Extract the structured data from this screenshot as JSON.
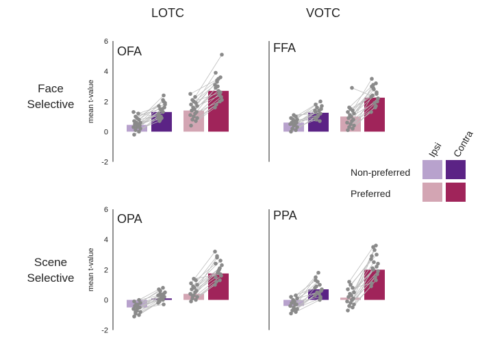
{
  "columns": [
    "LOTC",
    "VOTC"
  ],
  "rows": [
    {
      "lines": [
        "Face",
        "Selective"
      ]
    },
    {
      "lines": [
        "Scene",
        "Selective"
      ]
    }
  ],
  "legend": {
    "columns": [
      "Ipsi",
      "Contra"
    ],
    "rows": [
      "Non-preferred",
      "Preferred"
    ]
  },
  "colors": {
    "ipsi_nonpreferred": "#b8a2cd",
    "contra_nonpreferred": "#5b2385",
    "ipsi_preferred": "#d3a5b3",
    "contra_preferred": "#a0245a",
    "dots": "#8a8a8a",
    "lines": "#bdbdbd"
  },
  "chart_data": [
    {
      "type": "bar",
      "title": "OFA",
      "ylabel": "mean t-value",
      "ylim": [
        -2,
        6
      ],
      "yticks": [
        "6",
        "4",
        "2",
        "0",
        "-2"
      ],
      "categories": [
        "Ipsi Non-preferred",
        "Contra Non-preferred",
        "Ipsi Preferred",
        "Contra Preferred"
      ],
      "values": [
        0.45,
        1.3,
        1.4,
        2.7
      ],
      "subjects_nonpreferred": [
        [
          -0.2,
          0.9
        ],
        [
          0.0,
          1.3
        ],
        [
          0.1,
          1.6
        ],
        [
          0.2,
          0.7
        ],
        [
          0.3,
          1.5
        ],
        [
          0.3,
          1.0
        ],
        [
          0.4,
          1.9
        ],
        [
          0.4,
          1.2
        ],
        [
          0.5,
          2.4
        ],
        [
          0.5,
          1.4
        ],
        [
          0.6,
          0.8
        ],
        [
          0.6,
          2.1
        ],
        [
          0.7,
          1.1
        ],
        [
          0.8,
          1.7
        ],
        [
          0.9,
          2.0
        ],
        [
          1.0,
          1.5
        ],
        [
          1.2,
          1.8
        ],
        [
          1.3,
          0.9
        ]
      ],
      "subjects_preferred": [
        [
          0.4,
          1.6
        ],
        [
          0.7,
          2.0
        ],
        [
          0.8,
          2.3
        ],
        [
          0.9,
          1.8
        ],
        [
          1.0,
          2.5
        ],
        [
          1.1,
          3.0
        ],
        [
          1.2,
          2.1
        ],
        [
          1.3,
          2.9
        ],
        [
          1.4,
          3.6
        ],
        [
          1.5,
          2.7
        ],
        [
          1.6,
          3.3
        ],
        [
          1.7,
          2.4
        ],
        [
          1.8,
          3.1
        ],
        [
          1.9,
          3.9
        ],
        [
          2.0,
          2.6
        ],
        [
          2.1,
          3.4
        ],
        [
          2.3,
          5.1
        ],
        [
          2.5,
          3.5
        ]
      ]
    },
    {
      "type": "bar",
      "title": "FFA",
      "ylabel": "",
      "ylim": [
        -2,
        6
      ],
      "categories": [
        "Ipsi Non-preferred",
        "Contra Non-preferred",
        "Ipsi Preferred",
        "Contra Preferred"
      ],
      "values": [
        0.6,
        1.25,
        1.0,
        2.25
      ],
      "subjects_nonpreferred": [
        [
          0.0,
          0.9
        ],
        [
          0.1,
          1.2
        ],
        [
          0.2,
          1.5
        ],
        [
          0.3,
          0.8
        ],
        [
          0.4,
          1.4
        ],
        [
          0.5,
          1.0
        ],
        [
          0.5,
          1.7
        ],
        [
          0.6,
          1.3
        ],
        [
          0.6,
          2.0
        ],
        [
          0.7,
          1.1
        ],
        [
          0.8,
          1.6
        ],
        [
          0.8,
          0.7
        ],
        [
          0.9,
          1.4
        ],
        [
          1.0,
          1.8
        ],
        [
          1.1,
          1.2
        ]
      ],
      "subjects_preferred": [
        [
          0.1,
          1.3
        ],
        [
          0.2,
          1.7
        ],
        [
          0.3,
          2.0
        ],
        [
          0.4,
          2.4
        ],
        [
          0.5,
          1.6
        ],
        [
          0.6,
          2.8
        ],
        [
          0.7,
          2.2
        ],
        [
          0.8,
          3.0
        ],
        [
          0.9,
          2.5
        ],
        [
          1.0,
          1.9
        ],
        [
          1.1,
          2.9
        ],
        [
          1.2,
          3.2
        ],
        [
          1.3,
          2.3
        ],
        [
          1.4,
          3.5
        ],
        [
          1.5,
          2.6
        ],
        [
          1.6,
          3.1
        ],
        [
          2.9,
          2.2
        ]
      ]
    },
    {
      "type": "bar",
      "title": "OPA",
      "ylabel": "mean t-value",
      "ylim": [
        -2,
        6
      ],
      "yticks": [
        "6",
        "4",
        "2",
        "0",
        "-2"
      ],
      "categories": [
        "Ipsi Non-preferred",
        "Contra Non-preferred",
        "Ipsi Preferred",
        "Contra Preferred"
      ],
      "values": [
        -0.5,
        0.1,
        0.4,
        1.75
      ],
      "subjects_nonpreferred": [
        [
          -1.1,
          -0.2
        ],
        [
          -1.0,
          0.0
        ],
        [
          -0.9,
          0.2
        ],
        [
          -0.8,
          -0.1
        ],
        [
          -0.7,
          0.3
        ],
        [
          -0.6,
          0.1
        ],
        [
          -0.5,
          0.5
        ],
        [
          -0.5,
          0.0
        ],
        [
          -0.4,
          0.4
        ],
        [
          -0.3,
          0.2
        ],
        [
          -0.3,
          0.6
        ],
        [
          -0.2,
          0.8
        ],
        [
          -0.1,
          0.3
        ],
        [
          0.0,
          0.7
        ],
        [
          -0.6,
          -0.3
        ],
        [
          -0.8,
          0.4
        ]
      ],
      "subjects_preferred": [
        [
          -0.1,
          1.0
        ],
        [
          0.0,
          1.3
        ],
        [
          0.1,
          1.6
        ],
        [
          0.2,
          1.2
        ],
        [
          0.3,
          2.0
        ],
        [
          0.4,
          1.8
        ],
        [
          0.5,
          2.3
        ],
        [
          0.6,
          1.5
        ],
        [
          0.7,
          2.6
        ],
        [
          0.8,
          1.9
        ],
        [
          0.9,
          2.9
        ],
        [
          1.0,
          2.1
        ],
        [
          1.1,
          3.2
        ],
        [
          1.3,
          2.4
        ],
        [
          1.4,
          1.7
        ],
        [
          0.3,
          2.8
        ]
      ]
    },
    {
      "type": "bar",
      "title": "PPA",
      "ylabel": "",
      "ylim": [
        -2,
        6
      ],
      "categories": [
        "Ipsi Non-preferred",
        "Contra Non-preferred",
        "Ipsi Preferred",
        "Contra Preferred"
      ],
      "values": [
        -0.4,
        0.7,
        0.15,
        2.0
      ],
      "subjects_nonpreferred": [
        [
          -0.9,
          0.3
        ],
        [
          -0.8,
          0.0
        ],
        [
          -0.7,
          0.6
        ],
        [
          -0.6,
          0.9
        ],
        [
          -0.5,
          0.4
        ],
        [
          -0.4,
          1.2
        ],
        [
          -0.3,
          0.7
        ],
        [
          -0.3,
          1.5
        ],
        [
          -0.2,
          0.2
        ],
        [
          -0.1,
          1.8
        ],
        [
          0.0,
          0.5
        ],
        [
          0.1,
          1.0
        ],
        [
          0.2,
          0.8
        ],
        [
          0.3,
          1.3
        ],
        [
          -0.6,
          0.1
        ]
      ],
      "subjects_preferred": [
        [
          -0.7,
          0.9
        ],
        [
          -0.5,
          1.3
        ],
        [
          -0.4,
          1.7
        ],
        [
          -0.3,
          2.1
        ],
        [
          -0.2,
          1.5
        ],
        [
          -0.1,
          2.5
        ],
        [
          0.0,
          1.9
        ],
        [
          0.1,
          2.9
        ],
        [
          0.2,
          2.2
        ],
        [
          0.3,
          3.3
        ],
        [
          0.4,
          2.0
        ],
        [
          0.5,
          3.6
        ],
        [
          0.7,
          2.7
        ],
        [
          0.8,
          1.1
        ],
        [
          1.0,
          3.0
        ],
        [
          1.2,
          3.5
        ],
        [
          0.0,
          2.4
        ]
      ]
    }
  ]
}
